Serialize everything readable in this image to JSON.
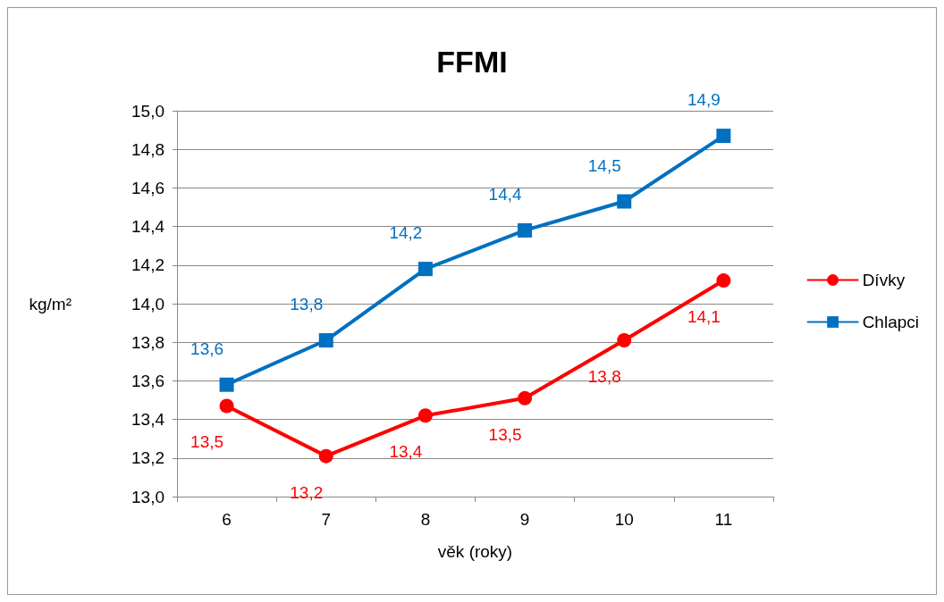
{
  "chart_data": {
    "type": "line",
    "title": "FFMI",
    "xlabel": "věk (roky)",
    "ylabel": "kg/m²",
    "categories": [
      "6",
      "7",
      "8",
      "9",
      "10",
      "11"
    ],
    "series": [
      {
        "name": "Dívky",
        "color": "#ff0000",
        "marker": "circle",
        "values": [
          13.47,
          13.21,
          13.42,
          13.51,
          13.81,
          14.12
        ],
        "value_labels": [
          "13,5",
          "13,2",
          "13,4",
          "13,5",
          "13,8",
          "14,1"
        ]
      },
      {
        "name": "Chlapci",
        "color": "#0070c0",
        "marker": "square",
        "values": [
          13.58,
          13.81,
          14.18,
          14.38,
          14.53,
          14.87
        ],
        "value_labels": [
          "13,6",
          "13,8",
          "14,2",
          "14,4",
          "14,5",
          "14,9"
        ]
      }
    ],
    "ylim": [
      13,
      15
    ],
    "yticks": [
      {
        "value": 13,
        "label": "13,0"
      },
      {
        "value": 13.2,
        "label": "13,2"
      },
      {
        "value": 13.4,
        "label": "13,4"
      },
      {
        "value": 13.6,
        "label": "13,6"
      },
      {
        "value": 13.8,
        "label": "13,8"
      },
      {
        "value": 14,
        "label": "14,0"
      },
      {
        "value": 14.2,
        "label": "14,2"
      },
      {
        "value": 14.4,
        "label": "14,4"
      },
      {
        "value": 14.6,
        "label": "14,6"
      },
      {
        "value": 14.8,
        "label": "14,8"
      },
      {
        "value": 15,
        "label": "15,0"
      }
    ],
    "grid": "y",
    "legend": "right"
  }
}
